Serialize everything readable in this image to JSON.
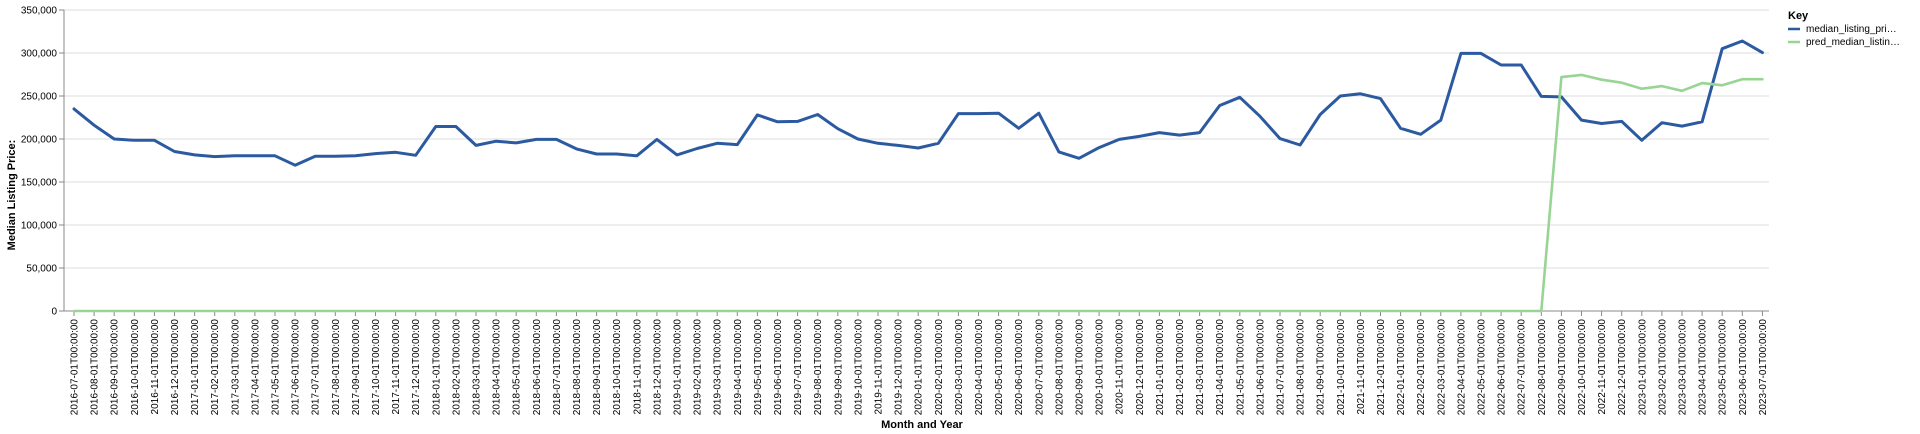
{
  "chart_data": {
    "type": "line",
    "xlabel": "Month and Year",
    "ylabel": "Median Listing Price:",
    "ylim": [
      0,
      350000
    ],
    "yticks": [
      "0",
      "50,000",
      "100,000",
      "150,000",
      "200,000",
      "250,000",
      "300,000",
      "350,000"
    ],
    "ytick_values": [
      0,
      50000,
      100000,
      150000,
      200000,
      250000,
      300000,
      350000
    ],
    "grid": true,
    "legend": {
      "title": "Key",
      "position": "right"
    },
    "x": [
      "2016-07-01T00:00:00",
      "2016-08-01T00:00:00",
      "2016-09-01T00:00:00",
      "2016-10-01T00:00:00",
      "2016-11-01T00:00:00",
      "2016-12-01T00:00:00",
      "2017-01-01T00:00:00",
      "2017-02-01T00:00:00",
      "2017-03-01T00:00:00",
      "2017-04-01T00:00:00",
      "2017-05-01T00:00:00",
      "2017-06-01T00:00:00",
      "2017-07-01T00:00:00",
      "2017-08-01T00:00:00",
      "2017-09-01T00:00:00",
      "2017-10-01T00:00:00",
      "2017-11-01T00:00:00",
      "2017-12-01T00:00:00",
      "2018-01-01T00:00:00",
      "2018-02-01T00:00:00",
      "2018-03-01T00:00:00",
      "2018-04-01T00:00:00",
      "2018-05-01T00:00:00",
      "2018-06-01T00:00:00",
      "2018-07-01T00:00:00",
      "2018-08-01T00:00:00",
      "2018-09-01T00:00:00",
      "2018-10-01T00:00:00",
      "2018-11-01T00:00:00",
      "2018-12-01T00:00:00",
      "2019-01-01T00:00:00",
      "2019-02-01T00:00:00",
      "2019-03-01T00:00:00",
      "2019-04-01T00:00:00",
      "2019-05-01T00:00:00",
      "2019-06-01T00:00:00",
      "2019-07-01T00:00:00",
      "2019-08-01T00:00:00",
      "2019-09-01T00:00:00",
      "2019-10-01T00:00:00",
      "2019-11-01T00:00:00",
      "2019-12-01T00:00:00",
      "2020-01-01T00:00:00",
      "2020-02-01T00:00:00",
      "2020-03-01T00:00:00",
      "2020-04-01T00:00:00",
      "2020-05-01T00:00:00",
      "2020-06-01T00:00:00",
      "2020-07-01T00:00:00",
      "2020-08-01T00:00:00",
      "2020-09-01T00:00:00",
      "2020-10-01T00:00:00",
      "2020-11-01T00:00:00",
      "2020-12-01T00:00:00",
      "2021-01-01T00:00:00",
      "2021-02-01T00:00:00",
      "2021-03-01T00:00:00",
      "2021-04-01T00:00:00",
      "2021-05-01T00:00:00",
      "2021-06-01T00:00:00",
      "2021-07-01T00:00:00",
      "2021-08-01T00:00:00",
      "2021-09-01T00:00:00",
      "2021-10-01T00:00:00",
      "2021-11-01T00:00:00",
      "2021-12-01T00:00:00",
      "2022-01-01T00:00:00",
      "2022-02-01T00:00:00",
      "2022-03-01T00:00:00",
      "2022-04-01T00:00:00",
      "2022-05-01T00:00:00",
      "2022-06-01T00:00:00",
      "2022-07-01T00:00:00",
      "2022-08-01T00:00:00",
      "2022-09-01T00:00:00",
      "2022-10-01T00:00:00",
      "2022-11-01T00:00:00",
      "2022-12-01T00:00:00",
      "2023-01-01T00:00:00",
      "2023-02-01T00:00:00",
      "2023-03-01T00:00:00",
      "2023-04-01T00:00:00",
      "2023-05-01T00:00:00",
      "2023-06-01T00:00:00",
      "2023-07-01T00:00:00"
    ],
    "series": [
      {
        "name": "median_listing_pri…",
        "color": "#2c5aa0",
        "values": [
          235000,
          216000,
          200000,
          198500,
          198500,
          185500,
          181500,
          179500,
          180500,
          180500,
          180500,
          169500,
          180000,
          180000,
          180500,
          183000,
          184500,
          181000,
          214500,
          214500,
          192500,
          197500,
          195500,
          199500,
          199500,
          188500,
          182500,
          182500,
          180500,
          199500,
          181500,
          189000,
          195000,
          193500,
          228000,
          220000,
          220500,
          228500,
          212000,
          200000,
          195000,
          192500,
          189500,
          195000,
          229500,
          229500,
          230000,
          212500,
          230000,
          185000,
          177500,
          190000,
          199500,
          203000,
          207500,
          204500,
          207500,
          239000,
          248500,
          226500,
          200500,
          193000,
          228500,
          250000,
          252500,
          247000,
          212500,
          205500,
          222000,
          299500,
          299500,
          286000,
          286000,
          249500,
          249000,
          222000,
          218000,
          220500,
          198500,
          219000,
          215000,
          220000,
          305000,
          314000,
          300500
        ]
      },
      {
        "name": "pred_median_listin…",
        "color": "#98d594",
        "values": [
          0,
          0,
          0,
          0,
          0,
          0,
          0,
          0,
          0,
          0,
          0,
          0,
          0,
          0,
          0,
          0,
          0,
          0,
          0,
          0,
          0,
          0,
          0,
          0,
          0,
          0,
          0,
          0,
          0,
          0,
          0,
          0,
          0,
          0,
          0,
          0,
          0,
          0,
          0,
          0,
          0,
          0,
          0,
          0,
          0,
          0,
          0,
          0,
          0,
          0,
          0,
          0,
          0,
          0,
          0,
          0,
          0,
          0,
          0,
          0,
          0,
          0,
          0,
          0,
          0,
          0,
          0,
          0,
          0,
          0,
          0,
          0,
          0,
          0,
          272000,
          274500,
          269000,
          265500,
          258500,
          261500,
          256000,
          265000,
          262500,
          269500,
          269500
        ]
      }
    ]
  }
}
